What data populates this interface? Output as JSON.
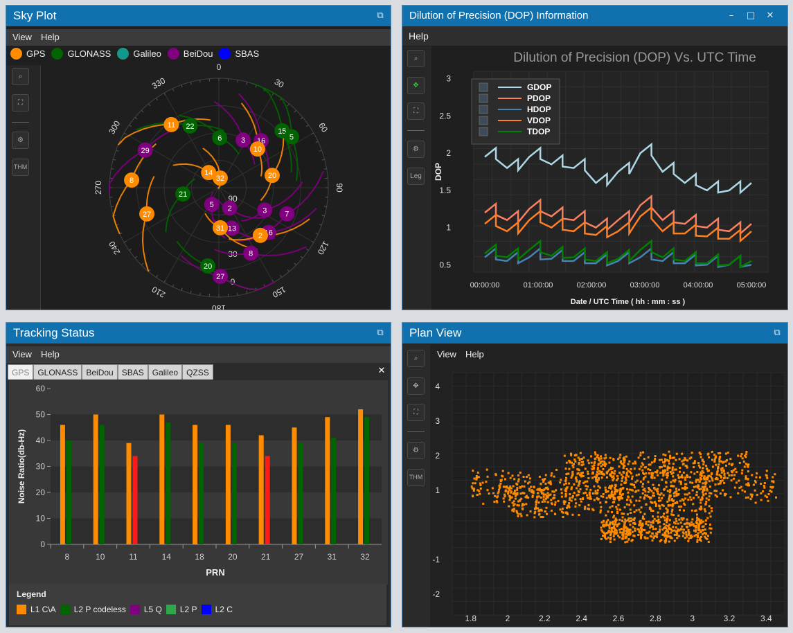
{
  "sky": {
    "title": "Sky Plot",
    "menu": [
      "View",
      "Help"
    ],
    "legend": [
      {
        "label": "GPS",
        "color": "#ff8c00"
      },
      {
        "label": "GLONASS",
        "color": "#006400"
      },
      {
        "label": "Galileo",
        "color": "#13998a"
      },
      {
        "label": "BeiDou",
        "color": "#800080"
      },
      {
        "label": "SBAS",
        "color": "#0000ff"
      }
    ],
    "tool_thm": "THM",
    "azimuth_labels": [
      "0",
      "30",
      "60",
      "90",
      "120",
      "150",
      "180",
      "210",
      "240",
      "270",
      "300",
      "330"
    ],
    "elevation_labels": [
      "90",
      "60",
      "30",
      "0"
    ],
    "satellites": [
      {
        "prn": "11",
        "sys": "gps",
        "az": 323,
        "el": 25
      },
      {
        "prn": "22",
        "sys": "glonass",
        "az": 335,
        "el": 34
      },
      {
        "prn": "6",
        "sys": "glonass",
        "az": 1,
        "el": 49
      },
      {
        "prn": "15",
        "sys": "glonass",
        "az": 48,
        "el": 20
      },
      {
        "prn": "5",
        "sys": "glonass",
        "az": 55,
        "el": 17
      },
      {
        "prn": "16",
        "sys": "beidou",
        "az": 42,
        "el": 38
      },
      {
        "prn": "3",
        "sys": "beidou",
        "az": 27,
        "el": 46
      },
      {
        "prn": "10",
        "sys": "gps",
        "az": 45,
        "el": 45
      },
      {
        "prn": "32",
        "sys": "gps",
        "az": 8,
        "el": 82
      },
      {
        "prn": "29",
        "sys": "beidou",
        "az": 297,
        "el": 22
      },
      {
        "prn": "8",
        "sys": "gps",
        "az": 275,
        "el": 18
      },
      {
        "prn": "14",
        "sys": "gps",
        "az": 326,
        "el": 75
      },
      {
        "prn": "20",
        "sys": "gps",
        "az": 77,
        "el": 45
      },
      {
        "prn": "21",
        "sys": "glonass",
        "az": 260,
        "el": 60
      },
      {
        "prn": "5",
        "sys": "beidou",
        "az": 203,
        "el": 75
      },
      {
        "prn": "2",
        "sys": "beidou",
        "az": 152,
        "el": 71
      },
      {
        "prn": "3",
        "sys": "beidou",
        "az": 116,
        "el": 48
      },
      {
        "prn": "7",
        "sys": "beidou",
        "az": 111,
        "el": 30
      },
      {
        "prn": "27",
        "sys": "gps",
        "az": 250,
        "el": 27
      },
      {
        "prn": "13",
        "sys": "beidou",
        "az": 162,
        "el": 55
      },
      {
        "prn": "31",
        "sys": "gps",
        "az": 178,
        "el": 57
      },
      {
        "prn": "16",
        "sys": "beidou",
        "az": 132,
        "el": 35
      },
      {
        "prn": "8",
        "sys": "beidou",
        "az": 154,
        "el": 30
      },
      {
        "prn": "20",
        "sys": "glonass",
        "az": 188,
        "el": 25
      },
      {
        "prn": "27",
        "sys": "beidou",
        "az": 179,
        "el": 17
      },
      {
        "prn": "2",
        "sys": "gps",
        "az": 139,
        "el": 38
      }
    ]
  },
  "dop": {
    "title": "Dilution of Precision (DOP) Information",
    "menu": [
      "Help"
    ],
    "tool_leg": "Leg",
    "chart_data": {
      "type": "line",
      "title": "Dilution of Precision (DOP) Vs. UTC Time",
      "xlabel": "Date / UTC Time ( hh : mm : ss )",
      "ylabel": "DOP",
      "x": [
        "00:00:00",
        "00:30:00",
        "01:00:00",
        "01:30:00",
        "02:00:00",
        "02:30:00",
        "03:00:00",
        "03:15:00",
        "03:30:00",
        "04:00:00",
        "04:15:00",
        "04:30:00",
        "05:00:00"
      ],
      "xticks": [
        "00:00:00",
        "01:00:00",
        "02:00:00",
        "03:00:00",
        "04:00:00",
        "05:00:00"
      ],
      "ylim": [
        0.4,
        3.1
      ],
      "yticks": [
        "0.5",
        "1",
        "1.5",
        "2",
        "2.5",
        "3"
      ],
      "legend_position": "top-left",
      "grid": true,
      "series": [
        {
          "name": "GDOP",
          "color": "#add8e6",
          "values": [
            1.95,
            1.8,
            1.95,
            1.85,
            1.8,
            1.6,
            1.75,
            2.0,
            1.75,
            1.6,
            1.5,
            1.5,
            1.6
          ]
        },
        {
          "name": "PDOP",
          "color": "#fa8060",
          "values": [
            1.2,
            1.1,
            1.25,
            1.15,
            1.1,
            1.0,
            1.1,
            1.3,
            1.1,
            1.05,
            1.0,
            0.95,
            1.05
          ]
        },
        {
          "name": "HDOP",
          "color": "#4682b4",
          "values": [
            0.6,
            0.55,
            0.6,
            0.58,
            0.55,
            0.52,
            0.55,
            0.6,
            0.55,
            0.52,
            0.5,
            0.5,
            0.5
          ]
        },
        {
          "name": "VDOP",
          "color": "#ff7f24",
          "values": [
            1.05,
            0.95,
            1.1,
            1.0,
            0.95,
            0.9,
            0.95,
            1.15,
            0.95,
            0.92,
            0.88,
            0.85,
            0.95
          ]
        },
        {
          "name": "TDOP",
          "color": "#008000",
          "values": [
            0.65,
            0.6,
            0.7,
            0.62,
            0.6,
            0.55,
            0.58,
            0.7,
            0.6,
            0.55,
            0.52,
            0.5,
            0.55
          ]
        }
      ]
    }
  },
  "tracking": {
    "title": "Tracking Status",
    "menu": [
      "View",
      "Help"
    ],
    "tabs": [
      "GPS",
      "GLONASS",
      "BeiDou",
      "SBAS",
      "Galileo",
      "QZSS"
    ],
    "legend_title": "Legend",
    "chart_data": {
      "type": "bar",
      "categories": [
        "8",
        "10",
        "11",
        "14",
        "18",
        "20",
        "21",
        "27",
        "31",
        "32"
      ],
      "xlabel": "PRN",
      "ylabel": "Noise Ratio(db-Hz)",
      "ylim": [
        0,
        60
      ],
      "yticks": [
        "0",
        "10",
        "20",
        "30",
        "40",
        "50",
        "60"
      ],
      "series": [
        {
          "name": "L1 C\\A",
          "color": "#ff8c00",
          "values": [
            46,
            50,
            39,
            50,
            46,
            46,
            42,
            45,
            49,
            52
          ]
        },
        {
          "name": "L2 P codeless",
          "color": "#006400",
          "values": [
            40,
            46,
            0,
            47,
            39,
            39,
            0,
            39,
            41,
            49
          ]
        },
        {
          "name": "L5 Q",
          "color": "#800080",
          "values": [
            0,
            0,
            0,
            0,
            0,
            0,
            0,
            0,
            0,
            0
          ]
        },
        {
          "name": "L2 P",
          "color": "#2ea84a",
          "values": [
            0,
            0,
            0,
            0,
            0,
            0,
            0,
            0,
            0,
            0
          ]
        },
        {
          "name": "L2 C",
          "color": "#0000ff",
          "values": [
            0,
            0,
            34,
            0,
            0,
            0,
            34,
            0,
            0,
            0
          ]
        }
      ]
    }
  },
  "plan": {
    "title": "Plan View",
    "menu": [
      "View",
      "Help"
    ],
    "tool_thm": "THM",
    "chart_data": {
      "type": "scatter",
      "xlim": [
        1.7,
        3.5
      ],
      "ylim": [
        -2.6,
        4.4
      ],
      "xticks": [
        "1.8",
        "2",
        "2.2",
        "2.4",
        "2.6",
        "2.8",
        "3",
        "3.2",
        "3.4"
      ],
      "yticks": [
        "4",
        "3",
        "2",
        "1",
        "-1",
        "-2"
      ],
      "color": "#ff8c00",
      "clusters": [
        {
          "x": [
            1.8,
            3.45
          ],
          "y": [
            0.6,
            1.7
          ]
        },
        {
          "x": [
            2.0,
            3.1
          ],
          "y": [
            0.2,
            1.3
          ]
        },
        {
          "x": [
            2.3,
            3.3
          ],
          "y": [
            1.2,
            2.2
          ]
        },
        {
          "x": [
            2.5,
            3.1
          ],
          "y": [
            -0.5,
            0.3
          ]
        }
      ]
    }
  }
}
